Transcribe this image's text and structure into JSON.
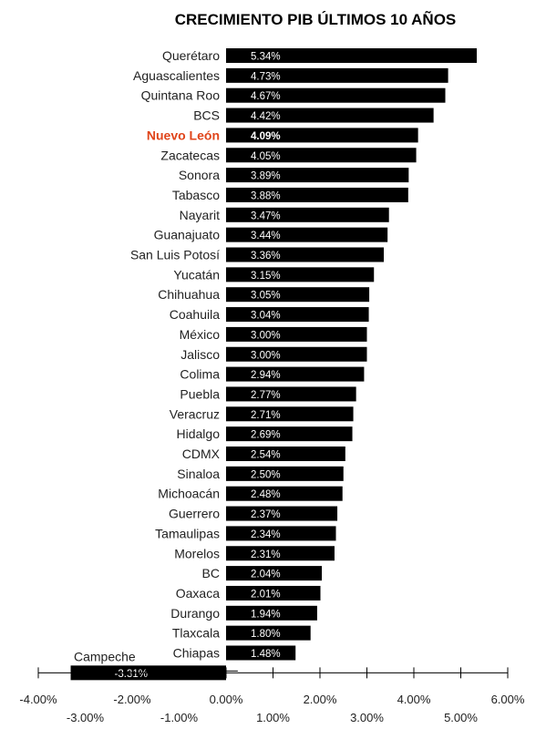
{
  "chart_data": {
    "type": "bar",
    "orientation": "horizontal",
    "title": "CRECIMIENTO PIB ÚLTIMOS 10 AÑOS",
    "highlight": "Nuevo León",
    "colors": {
      "bar": "#000000",
      "highlight_label": "#e0451b",
      "value_text": "#ffffff"
    },
    "categories": [
      "Querétaro",
      "Aguascalientes",
      "Quintana Roo",
      "BCS",
      "Nuevo León",
      "Zacatecas",
      "Sonora",
      "Tabasco",
      "Nayarit",
      "Guanajuato",
      "San Luis Potosí",
      "Yucatán",
      "Chihuahua",
      "Coahuila",
      "México",
      "Jalisco",
      "Colima",
      "Puebla",
      "Veracruz",
      "Hidalgo",
      "CDMX",
      "Sinaloa",
      "Michoacán",
      "Guerrero",
      "Tamaulipas",
      "Morelos",
      "BC",
      "Oaxaca",
      "Durango",
      "Tlaxcala",
      "Chiapas",
      "Campeche"
    ],
    "values": [
      5.34,
      4.73,
      4.67,
      4.42,
      4.09,
      4.05,
      3.89,
      3.88,
      3.47,
      3.44,
      3.36,
      3.15,
      3.05,
      3.04,
      3.0,
      3.0,
      2.94,
      2.77,
      2.71,
      2.69,
      2.54,
      2.5,
      2.48,
      2.37,
      2.34,
      2.31,
      2.04,
      2.01,
      1.94,
      1.8,
      1.48,
      -3.31
    ],
    "value_labels": [
      "5.34%",
      "4.73%",
      "4.67%",
      "4.42%",
      "4.09%",
      "4.05%",
      "3.89%",
      "3.88%",
      "3.47%",
      "3.44%",
      "3.36%",
      "3.15%",
      "3.05%",
      "3.04%",
      "3.00%",
      "3.00%",
      "2.94%",
      "2.77%",
      "2.71%",
      "2.69%",
      "2.54%",
      "2.50%",
      "2.48%",
      "2.37%",
      "2.34%",
      "2.31%",
      "2.04%",
      "2.01%",
      "1.94%",
      "1.80%",
      "1.48%",
      "-3.31%"
    ],
    "xlim": [
      -4.0,
      6.0
    ],
    "xticks_upper": [
      "-4.00%",
      "-2.00%",
      "0.00%",
      "2.00%",
      "4.00%",
      "6.00%"
    ],
    "xticks_lower": [
      "-3.00%",
      "-1.00%",
      "1.00%",
      "3.00%",
      "5.00%"
    ],
    "xtick_values_upper": [
      -4,
      -2,
      0,
      2,
      4,
      6
    ],
    "xtick_values_lower": [
      -3,
      -1,
      1,
      3,
      5
    ]
  }
}
